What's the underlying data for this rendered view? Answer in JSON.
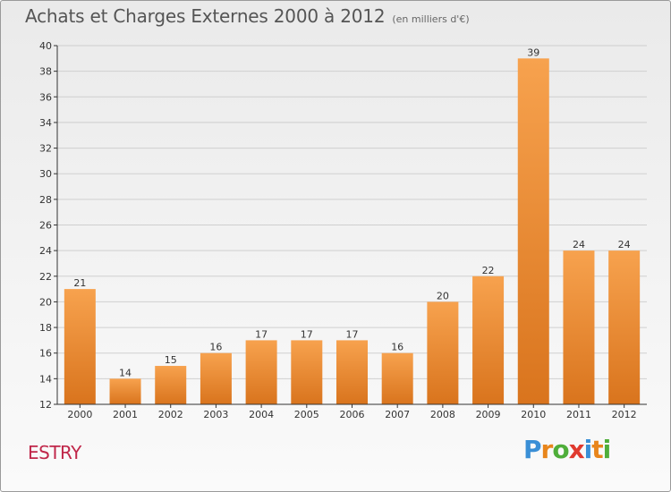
{
  "header": {
    "title": "Achats et Charges Externes 2000 à 2012",
    "subtitle": "(en milliers d'€)"
  },
  "footer": {
    "commune": "ESTRY",
    "brand_letters": [
      {
        "ch": "P",
        "color": "#3a8fd6"
      },
      {
        "ch": "r",
        "color": "#e8861c"
      },
      {
        "ch": "o",
        "color": "#4fae3a"
      },
      {
        "ch": "x",
        "color": "#e03a2f"
      },
      {
        "ch": "i",
        "color": "#3a8fd6"
      },
      {
        "ch": "t",
        "color": "#e8861c"
      },
      {
        "ch": "i",
        "color": "#4fae3a"
      }
    ]
  },
  "chart_data": {
    "type": "bar",
    "title": "Achats et Charges Externes 2000 à 2012",
    "subtitle": "(en milliers d'€)",
    "categories": [
      "2000",
      "2001",
      "2002",
      "2003",
      "2004",
      "2005",
      "2006",
      "2007",
      "2008",
      "2009",
      "2010",
      "2011",
      "2012"
    ],
    "values": [
      21,
      14,
      15,
      16,
      17,
      17,
      17,
      16,
      20,
      22,
      39,
      24,
      24
    ],
    "ylim": [
      12,
      40
    ],
    "yticks": [
      12,
      14,
      16,
      18,
      20,
      22,
      24,
      26,
      28,
      30,
      32,
      34,
      36,
      38,
      40
    ],
    "grid": true,
    "legend": "none",
    "colors": {
      "bar_light": "#f7a24e",
      "bar_dark": "#d9741d",
      "axis": "#333333",
      "grid": "#cfcfcf"
    }
  }
}
